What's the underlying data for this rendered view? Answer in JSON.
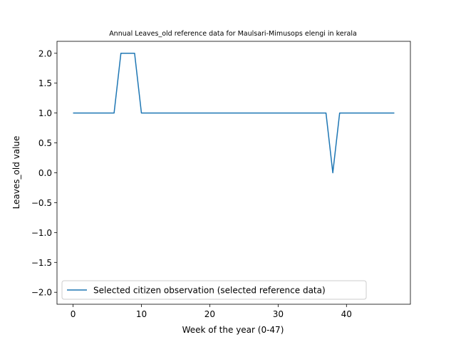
{
  "chart_data": {
    "type": "line",
    "title": "Annual Leaves_old reference data for Maulsari-Mimusops elengi in kerala",
    "xlabel": "Week of the year (0-47)",
    "ylabel": "Leaves_old value",
    "xlim": [
      -2.35,
      49.35
    ],
    "ylim": [
      -2.2,
      2.2
    ],
    "xticks": [
      0,
      10,
      20,
      30,
      40
    ],
    "yticks": [
      -2.0,
      -1.5,
      -1.0,
      -0.5,
      0.0,
      0.5,
      1.0,
      1.5,
      2.0
    ],
    "ytick_labels": [
      "−2.0",
      "−1.5",
      "−1.0",
      "−0.5",
      "0.0",
      "0.5",
      "1.0",
      "1.5",
      "2.0"
    ],
    "grid": false,
    "legend_position": "lower-left",
    "series": [
      {
        "name": "Selected citizen observation (selected reference data)",
        "color": "#1f77b4",
        "x": [
          0,
          1,
          2,
          3,
          4,
          5,
          6,
          7,
          8,
          9,
          10,
          11,
          12,
          13,
          14,
          15,
          16,
          17,
          18,
          19,
          20,
          21,
          22,
          23,
          24,
          25,
          26,
          27,
          28,
          29,
          30,
          31,
          32,
          33,
          34,
          35,
          36,
          37,
          38,
          39,
          40,
          41,
          42,
          43,
          44,
          45,
          46,
          47
        ],
        "y": [
          1,
          1,
          1,
          1,
          1,
          1,
          1,
          2,
          2,
          2,
          1,
          1,
          1,
          1,
          1,
          1,
          1,
          1,
          1,
          1,
          1,
          1,
          1,
          1,
          1,
          1,
          1,
          1,
          1,
          1,
          1,
          1,
          1,
          1,
          1,
          1,
          1,
          1,
          0,
          1,
          1,
          1,
          1,
          1,
          1,
          1,
          1,
          1
        ]
      }
    ]
  }
}
